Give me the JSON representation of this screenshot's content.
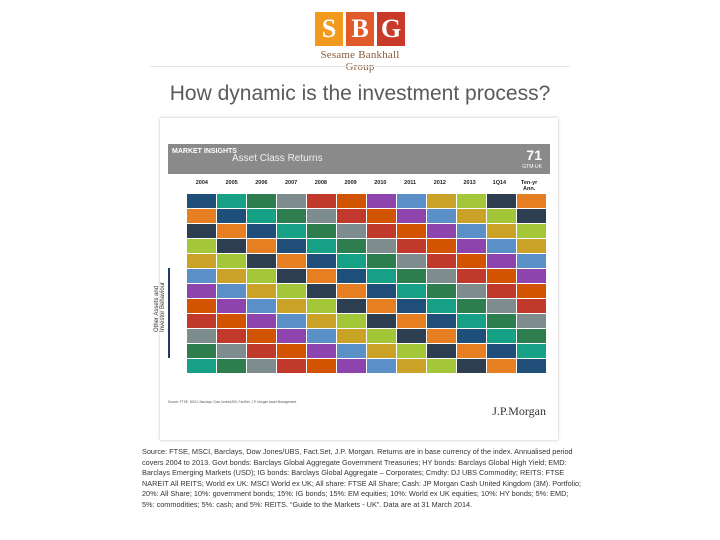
{
  "logo": {
    "letters": [
      "S",
      "B",
      "G"
    ],
    "name": "Sesame Bankhall Group",
    "colors": [
      "#f29a1d",
      "#e05a2b",
      "#c93a2a"
    ]
  },
  "title": "How dynamic is the investment process?",
  "slide": {
    "header_left": "MARKET INSIGHTS",
    "header_title": "Asset Class Returns",
    "page_number": "71",
    "page_code": "GTM-UK",
    "side_label": "Other Assets and Investor Behaviour",
    "years": [
      "2004",
      "2005",
      "2006",
      "2007",
      "2008",
      "2009",
      "2010",
      "2011",
      "2012",
      "2013",
      "1Q14",
      "Ten-yr Ann."
    ],
    "footnote": "Source: FTSE, MSCI, Barclays, Dow Jones/UBS, FactSet, J.P. Morgan Asset Management.",
    "brand": "J.P.Morgan"
  },
  "source_text": "Source: FTSE, MSCI, Barclays, Dow Jones/UBS, Fact.Set, J.P. Morgan. Returns are in base currency of the index. Annualised period covers 2004 to 2013. Govt bonds: Barclays Global Aggregate Government Treasuries; HY bonds: Barclays Global High Yield; EMD: Barclays Emerging Markets (USD); IG bonds: Barclays Global Aggregate – Corporates; Cmdty: DJ UBS Commodity; REITS: FTSE NAREIT All REITS; World ex UK: MSCI World ex UK; All share: FTSE All Share; Cash: JP Morgan Cash United Kingdom (3M). Portfolio; 20%: All Share; 10%: government bonds; 15%: IG bonds; 15%: EM equities; 10%: World ex UK equities; 10%: HY bonds; 5%: EMD; 5%: commodities; 5%: cash; and 5%: REITS. “Guide to the Markets - UK”. Data are at 31 March 2014."
}
